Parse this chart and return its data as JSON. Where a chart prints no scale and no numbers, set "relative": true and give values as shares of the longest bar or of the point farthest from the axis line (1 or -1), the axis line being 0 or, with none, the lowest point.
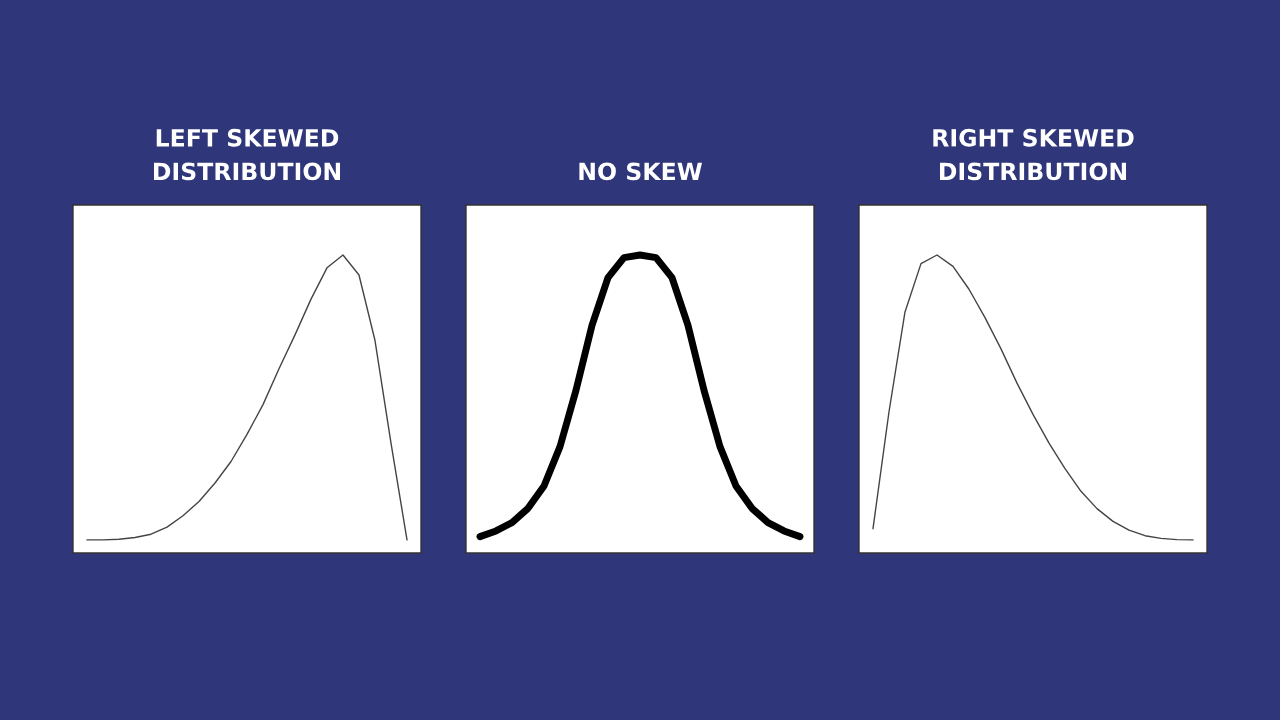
{
  "chart_data": [
    {
      "type": "line",
      "title": "LEFT SKEWED\nDISTRIBUTION",
      "relative": true,
      "categories": [
        null,
        null,
        null,
        null,
        null,
        null,
        null,
        null,
        null,
        null,
        null,
        null,
        null,
        null,
        null,
        null,
        null,
        null,
        null,
        null,
        null
      ],
      "series": [
        {
          "color": "#444444",
          "values": [
            0.044,
            0.044,
            0.046,
            0.052,
            0.063,
            0.087,
            0.125,
            0.173,
            0.235,
            0.307,
            0.398,
            0.498,
            0.618,
            0.732,
            0.852,
            0.957,
            1,
            0.933,
            0.713,
            0.369,
            0.044
          ]
        }
      ]
    },
    {
      "type": "line",
      "title": "NO SKEW",
      "relative": true,
      "categories": [
        null,
        null,
        null,
        null,
        null,
        null,
        null,
        null,
        null,
        null,
        null,
        null,
        null,
        null,
        null,
        null,
        null,
        null,
        null,
        null,
        null
      ],
      "series": [
        {
          "color": "#000000",
          "values": [
            0.055,
            0.074,
            0.102,
            0.15,
            0.225,
            0.357,
            0.546,
            0.764,
            0.924,
            0.991,
            1,
            0.991,
            0.924,
            0.764,
            0.546,
            0.357,
            0.225,
            0.15,
            0.102,
            0.074,
            0.055
          ]
        }
      ]
    },
    {
      "type": "line",
      "title": "RIGHT SKEWED\nDISTRIBUTION",
      "relative": true,
      "categories": [
        null,
        null,
        null,
        null,
        null,
        null,
        null,
        null,
        null,
        null,
        null,
        null,
        null,
        null,
        null,
        null,
        null,
        null,
        null,
        null,
        null
      ],
      "series": [
        {
          "color": "#444444",
          "values": [
            0.082,
            0.474,
            0.809,
            0.971,
            1,
            0.962,
            0.885,
            0.79,
            0.685,
            0.57,
            0.465,
            0.369,
            0.283,
            0.207,
            0.149,
            0.106,
            0.077,
            0.058,
            0.049,
            0.045,
            0.044
          ]
        }
      ]
    }
  ]
}
